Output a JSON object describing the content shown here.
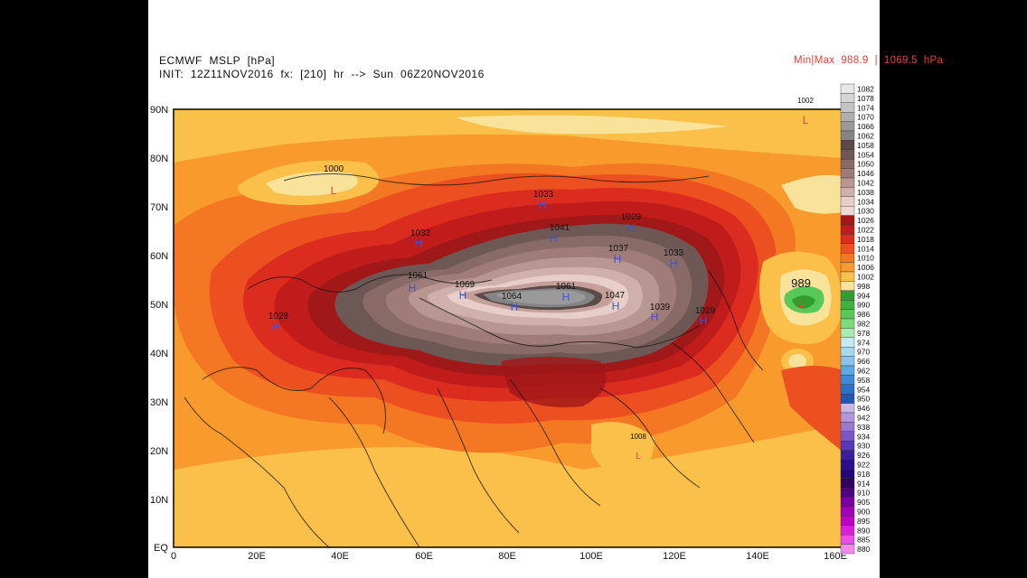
{
  "header": {
    "title": "ECMWF  MSLP  [hPa]",
    "init_line": "INIT:  12Z11NOV2016  fx:  [210]  hr  -->  Sun  06Z20NOV2016",
    "minmax": "Min|Max  988.9  |  1069.5  hPa"
  },
  "axes": {
    "lat_labels": [
      "90N",
      "80N",
      "70N",
      "60N",
      "50N",
      "40N",
      "30N",
      "20N",
      "10N",
      "EQ"
    ],
    "lon_labels": [
      "0",
      "20E",
      "40E",
      "60E",
      "80E",
      "100E",
      "120E",
      "140E",
      "160E"
    ]
  },
  "legend_levels": [
    "1082",
    "1078",
    "1074",
    "1070",
    "1066",
    "1062",
    "1058",
    "1054",
    "1050",
    "1046",
    "1042",
    "1038",
    "1034",
    "1030",
    "1026",
    "1022",
    "1018",
    "1014",
    "1010",
    "1006",
    "1002",
    "998",
    "994",
    "990",
    "986",
    "982",
    "978",
    "974",
    "970",
    "966",
    "962",
    "958",
    "954",
    "950",
    "946",
    "942",
    "938",
    "934",
    "930",
    "926",
    "922",
    "918",
    "914",
    "910",
    "905",
    "900",
    "895",
    "890",
    "885",
    "880"
  ],
  "legend_colors": [
    "#e8e8e8",
    "#d6d6d6",
    "#c4c4c4",
    "#b0b0b0",
    "#9a9a9a",
    "#848484",
    "#5a4a48",
    "#6e5856",
    "#886a66",
    "#a07c78",
    "#b89692",
    "#cfb0aa",
    "#e8cec8",
    "#f0d8d2",
    "#a01818",
    "#c01c1c",
    "#dc2c20",
    "#ec5020",
    "#f47824",
    "#f89a2c",
    "#fbc04a",
    "#f9e39a",
    "#2f9e2f",
    "#3cb43c",
    "#58c858",
    "#7adc7a",
    "#a8ecb4",
    "#c4e8f4",
    "#a8d8f0",
    "#88c4ec",
    "#5aa8e4",
    "#3c8ad8",
    "#2a70cc",
    "#2058b8",
    "#c8b8e8",
    "#b098dc",
    "#9878d0",
    "#7858c4",
    "#5838b4",
    "#3820a0",
    "#2a1090",
    "#200878",
    "#300060",
    "#500080",
    "#7a00a0",
    "#a000b8",
    "#c000c8",
    "#d820d8",
    "#e850e8",
    "#f088f0"
  ],
  "pressure_labels": [
    "1000",
    "1002",
    "1033",
    "1029",
    "1041",
    "1032",
    "1037",
    "1033",
    "1061",
    "1069",
    "1064",
    "1061",
    "1047",
    "1039",
    "1029",
    "1028",
    "989",
    "1008"
  ],
  "system_letters": [
    "L",
    "L",
    "L",
    "L",
    "H",
    "H",
    "H",
    "H",
    "H",
    "H",
    "H",
    "H",
    "H",
    "H",
    "H",
    "H",
    "H",
    "H"
  ]
}
